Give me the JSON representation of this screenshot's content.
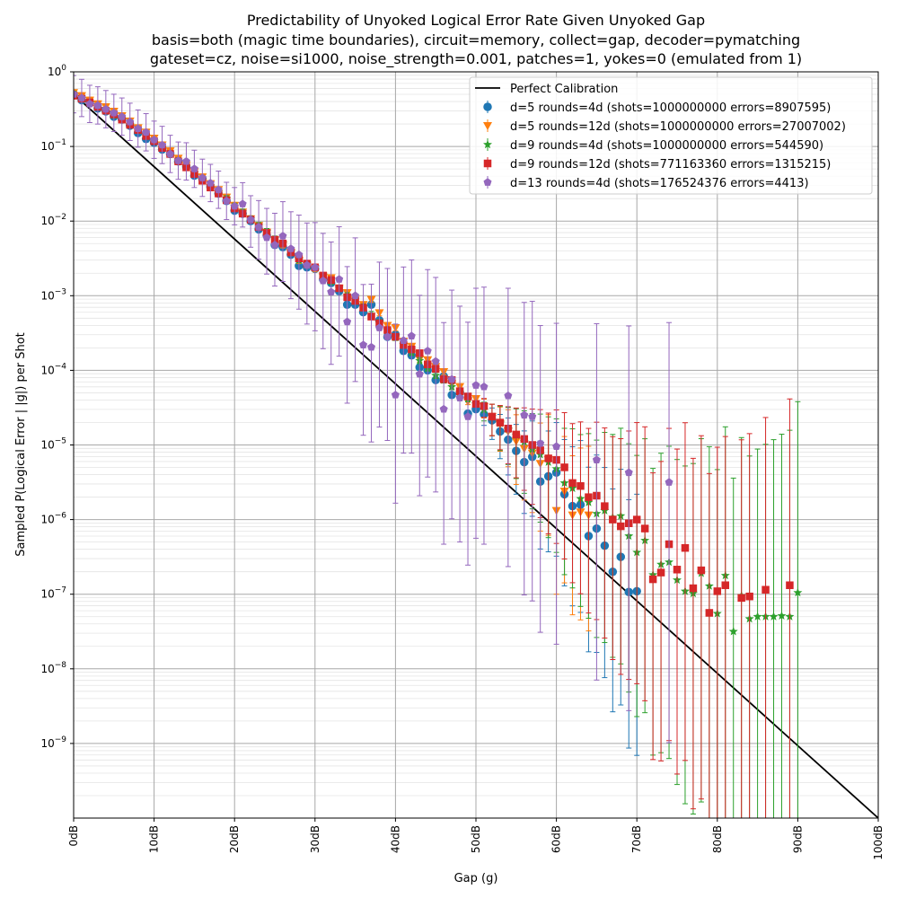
{
  "chart_data": {
    "type": "scatter",
    "title_lines": [
      "Predictability of Unyoked Logical Error Rate Given Unyoked Gap",
      "basis=both (magic time boundaries), circuit=memory, collect=gap, decoder=pymatching",
      "gateset=cz, noise=si1000, noise_strength=0.001, patches=1, yokes=0 (emulated from 1)"
    ],
    "xlabel": "Gap (g)",
    "ylabel": "Sampled P(Logical Error | |g|) per Shot",
    "xlim": [
      0,
      100
    ],
    "ylim_log10": [
      -10,
      0
    ],
    "x_scale": "linear",
    "y_scale": "log",
    "grid": true,
    "legend_position": "top-right",
    "x_ticks": [
      {
        "v": 0,
        "label": "0dB"
      },
      {
        "v": 10,
        "label": "10dB"
      },
      {
        "v": 20,
        "label": "20dB"
      },
      {
        "v": 30,
        "label": "30dB"
      },
      {
        "v": 40,
        "label": "40dB"
      },
      {
        "v": 50,
        "label": "50dB"
      },
      {
        "v": 60,
        "label": "60dB"
      },
      {
        "v": 70,
        "label": "70dB"
      },
      {
        "v": 80,
        "label": "80dB"
      },
      {
        "v": 90,
        "label": "90dB"
      },
      {
        "v": 100,
        "label": "100dB"
      }
    ],
    "y_ticks": [
      {
        "v": 0,
        "base": "10",
        "exp": "0"
      },
      {
        "v": -1,
        "base": "10",
        "exp": "−1"
      },
      {
        "v": -2,
        "base": "10",
        "exp": "−2"
      },
      {
        "v": -3,
        "base": "10",
        "exp": "−3"
      },
      {
        "v": -4,
        "base": "10",
        "exp": "−4"
      },
      {
        "v": -5,
        "base": "10",
        "exp": "−5"
      },
      {
        "v": -6,
        "base": "10",
        "exp": "−6"
      },
      {
        "v": -7,
        "base": "10",
        "exp": "−7"
      },
      {
        "v": -8,
        "base": "10",
        "exp": "−8"
      },
      {
        "v": -9,
        "base": "10",
        "exp": "−9"
      }
    ],
    "reference_line": {
      "name": "Perfect Calibration",
      "color": "#000000",
      "x": [
        0,
        100
      ],
      "log10_y": [
        -0.301,
        -10
      ]
    },
    "series": [
      {
        "name": "d=5 rounds=4d (shots=1000000000 errors=8907595)",
        "color": "#1f77b4",
        "marker": "circle",
        "x": [
          0,
          1,
          2,
          3,
          4,
          5,
          6,
          7,
          8,
          9,
          10,
          11,
          12,
          13,
          14,
          15,
          16,
          17,
          18,
          19,
          20,
          21,
          22,
          23,
          24,
          25,
          26,
          27,
          28,
          29,
          30,
          31,
          32,
          33,
          34,
          35,
          36,
          37,
          38,
          39,
          40,
          41,
          42,
          43,
          44,
          45,
          46,
          47,
          48,
          49,
          50,
          51,
          52,
          53,
          54,
          55,
          56,
          57,
          58,
          59,
          60,
          61,
          62,
          63,
          64,
          65,
          66,
          67,
          68,
          69,
          70
        ],
        "log10_y": [
          -0.301,
          -0.38,
          -0.41,
          -0.49,
          -0.53,
          -0.6,
          -0.64,
          -0.72,
          -0.82,
          -0.9,
          -0.95,
          -1.04,
          -1.1,
          -1.2,
          -1.27,
          -1.39,
          -1.43,
          -1.54,
          -1.63,
          -1.73,
          -1.86,
          -1.9,
          -2.0,
          -2.11,
          -2.19,
          -2.32,
          -2.35,
          -2.45,
          -2.6,
          -2.62,
          -2.64,
          -2.78,
          -2.83,
          -2.94,
          -3.12,
          -3.12,
          -3.22,
          -3.12,
          -3.33,
          -3.55,
          -3.52,
          -3.74,
          -3.8,
          -3.96,
          -4.0,
          -4.13,
          -4.08,
          -4.33,
          -4.3,
          -4.58,
          -4.52,
          -4.59,
          -4.67,
          -4.82,
          -4.93,
          -5.08,
          -5.23,
          -5.16,
          -5.49,
          -5.42,
          -5.37,
          -5.66,
          -5.82,
          -5.8,
          -6.22,
          -6.12,
          -6.35,
          -6.7,
          -6.5,
          -6.97,
          -6.96
        ]
      },
      {
        "name": "d=5 rounds=12d (shots=1000000000 errors=27007002)",
        "color": "#ff7f0e",
        "marker": "triangle-down",
        "x": [
          0,
          1,
          2,
          3,
          4,
          5,
          6,
          7,
          8,
          9,
          10,
          11,
          12,
          13,
          14,
          15,
          16,
          17,
          18,
          19,
          20,
          21,
          22,
          23,
          24,
          25,
          26,
          27,
          28,
          29,
          30,
          31,
          32,
          33,
          34,
          35,
          36,
          37,
          38,
          39,
          40,
          41,
          42,
          43,
          44,
          45,
          46,
          47,
          48,
          49,
          50,
          51,
          52,
          53,
          54,
          55,
          56,
          57,
          58,
          59,
          60,
          61,
          62,
          63,
          64
        ],
        "log10_y": [
          -0.28,
          -0.32,
          -0.38,
          -0.43,
          -0.47,
          -0.53,
          -0.59,
          -0.66,
          -0.75,
          -0.81,
          -0.89,
          -0.98,
          -1.06,
          -1.16,
          -1.25,
          -1.34,
          -1.41,
          -1.5,
          -1.58,
          -1.68,
          -1.79,
          -1.88,
          -1.97,
          -2.06,
          -2.15,
          -2.25,
          -2.32,
          -2.42,
          -2.53,
          -2.59,
          -2.64,
          -2.74,
          -2.76,
          -2.9,
          -2.96,
          -3.05,
          -3.12,
          -3.05,
          -3.23,
          -3.4,
          -3.43,
          -3.61,
          -3.68,
          -3.85,
          -3.86,
          -3.95,
          -4.02,
          -4.18,
          -4.22,
          -4.42,
          -4.38,
          -4.49,
          -4.62,
          -4.72,
          -4.82,
          -4.95,
          -5.05,
          -5.11,
          -5.25,
          -5.2,
          -5.88,
          -5.62,
          -5.94,
          -5.9,
          -5.94
        ]
      },
      {
        "name": "d=9 rounds=4d (shots=1000000000 errors=544590)",
        "color": "#2ca02c",
        "marker": "star",
        "x": [
          0,
          1,
          2,
          3,
          4,
          5,
          6,
          7,
          8,
          9,
          10,
          11,
          12,
          13,
          14,
          15,
          16,
          17,
          18,
          19,
          20,
          21,
          22,
          23,
          24,
          25,
          26,
          27,
          28,
          29,
          30,
          31,
          32,
          33,
          34,
          35,
          36,
          37,
          38,
          39,
          40,
          41,
          42,
          43,
          44,
          45,
          46,
          47,
          48,
          49,
          50,
          51,
          52,
          53,
          54,
          55,
          56,
          57,
          58,
          59,
          60,
          61,
          62,
          63,
          64,
          65,
          66,
          67,
          68,
          69,
          70,
          71,
          72,
          73,
          74,
          75,
          76,
          77,
          78,
          79,
          80,
          81,
          82,
          83,
          84,
          85,
          86,
          87,
          88,
          89,
          90
        ],
        "log10_y": [
          -0.3,
          -0.36,
          -0.42,
          -0.47,
          -0.52,
          -0.58,
          -0.64,
          -0.71,
          -0.78,
          -0.86,
          -0.93,
          -1.02,
          -1.1,
          -1.19,
          -1.27,
          -1.36,
          -1.44,
          -1.53,
          -1.61,
          -1.7,
          -1.8,
          -1.88,
          -1.97,
          -2.06,
          -2.14,
          -2.24,
          -2.3,
          -2.41,
          -2.52,
          -2.58,
          -2.62,
          -2.73,
          -2.81,
          -2.9,
          -3.0,
          -3.05,
          -3.15,
          -3.25,
          -3.36,
          -3.46,
          -3.56,
          -3.66,
          -3.76,
          -3.87,
          -3.97,
          -4.07,
          -4.13,
          -4.22,
          -4.3,
          -4.38,
          -4.45,
          -4.53,
          -4.62,
          -4.71,
          -4.79,
          -4.87,
          -4.96,
          -5.06,
          -5.13,
          -5.23,
          -5.32,
          -5.51,
          -5.58,
          -5.72,
          -5.77,
          -5.92,
          -5.88,
          -5.97,
          -5.95,
          -6.22,
          -6.44,
          -6.28,
          -6.74,
          -6.6,
          -6.57,
          -6.81,
          -6.96,
          -6.99,
          -6.72,
          -6.89,
          -7.26,
          -6.75,
          -7.5,
          -7.02,
          -7.33,
          -7.3,
          -7.3,
          -7.3,
          -7.29,
          -7.3,
          -6.98
        ]
      },
      {
        "name": "d=9 rounds=12d (shots=771163360 errors=1315215)",
        "color": "#d62728",
        "marker": "square",
        "x": [
          0,
          1,
          2,
          3,
          4,
          5,
          6,
          7,
          8,
          9,
          10,
          11,
          12,
          13,
          14,
          15,
          16,
          17,
          18,
          19,
          20,
          21,
          22,
          23,
          24,
          25,
          26,
          27,
          28,
          29,
          30,
          31,
          32,
          33,
          34,
          35,
          36,
          37,
          38,
          39,
          40,
          41,
          42,
          43,
          44,
          45,
          46,
          47,
          48,
          49,
          50,
          51,
          52,
          53,
          54,
          55,
          56,
          57,
          58,
          59,
          60,
          61,
          62,
          63,
          64,
          65,
          66,
          67,
          68,
          69,
          70,
          71,
          72,
          73,
          74,
          75,
          76,
          77,
          78,
          79,
          80,
          81,
          83,
          84,
          86,
          89
        ],
        "log10_y": [
          -0.32,
          -0.36,
          -0.41,
          -0.47,
          -0.52,
          -0.57,
          -0.64,
          -0.71,
          -0.78,
          -0.86,
          -0.93,
          -1.02,
          -1.1,
          -1.2,
          -1.28,
          -1.37,
          -1.46,
          -1.55,
          -1.63,
          -1.72,
          -1.83,
          -1.9,
          -1.98,
          -2.08,
          -2.16,
          -2.25,
          -2.3,
          -2.42,
          -2.5,
          -2.57,
          -2.62,
          -2.73,
          -2.79,
          -2.9,
          -3.02,
          -3.07,
          -3.16,
          -3.28,
          -3.37,
          -3.46,
          -3.55,
          -3.66,
          -3.72,
          -3.77,
          -3.92,
          -3.98,
          -4.12,
          -4.13,
          -4.28,
          -4.35,
          -4.45,
          -4.48,
          -4.62,
          -4.7,
          -4.78,
          -4.86,
          -4.92,
          -5.0,
          -5.07,
          -5.18,
          -5.2,
          -5.3,
          -5.51,
          -5.55,
          -5.7,
          -5.68,
          -5.82,
          -6.0,
          -6.09,
          -6.05,
          -6.0,
          -6.12,
          -6.8,
          -6.71,
          -6.33,
          -6.67,
          -6.38,
          -6.92,
          -6.68,
          -7.25,
          -6.96,
          -6.88,
          -7.05,
          -7.03,
          -6.94,
          -6.88
        ]
      },
      {
        "name": "d=13 rounds=4d (shots=176524376 errors=4413)",
        "color": "#9467bd",
        "marker": "pentagon",
        "x": [
          0,
          1,
          2,
          3,
          4,
          5,
          6,
          7,
          8,
          9,
          10,
          11,
          12,
          13,
          14,
          15,
          16,
          17,
          18,
          19,
          20,
          21,
          22,
          23,
          24,
          25,
          26,
          27,
          28,
          29,
          30,
          31,
          32,
          33,
          34,
          35,
          36,
          37,
          38,
          39,
          40,
          41,
          42,
          43,
          44,
          45,
          46,
          47,
          48,
          49,
          50,
          51,
          54,
          56,
          57,
          58,
          60,
          65,
          69,
          74
        ],
        "log10_y": [
          -0.3,
          -0.35,
          -0.43,
          -0.45,
          -0.5,
          -0.55,
          -0.6,
          -0.67,
          -0.76,
          -0.81,
          -0.91,
          -0.98,
          -1.1,
          -1.19,
          -1.2,
          -1.3,
          -1.42,
          -1.49,
          -1.58,
          -1.73,
          -1.8,
          -1.77,
          -1.98,
          -2.08,
          -2.22,
          -2.32,
          -2.2,
          -2.37,
          -2.45,
          -2.59,
          -2.62,
          -2.8,
          -2.95,
          -2.78,
          -3.35,
          -3.0,
          -3.66,
          -3.69,
          -3.43,
          -3.55,
          -4.33,
          -3.6,
          -3.54,
          -4.05,
          -3.74,
          -3.88,
          -4.52,
          -4.12,
          -4.37,
          -4.62,
          -4.2,
          -4.22,
          -4.34,
          -4.6,
          -4.62,
          -4.98,
          -5.02,
          -5.2,
          -5.37,
          -5.5
        ]
      }
    ]
  }
}
